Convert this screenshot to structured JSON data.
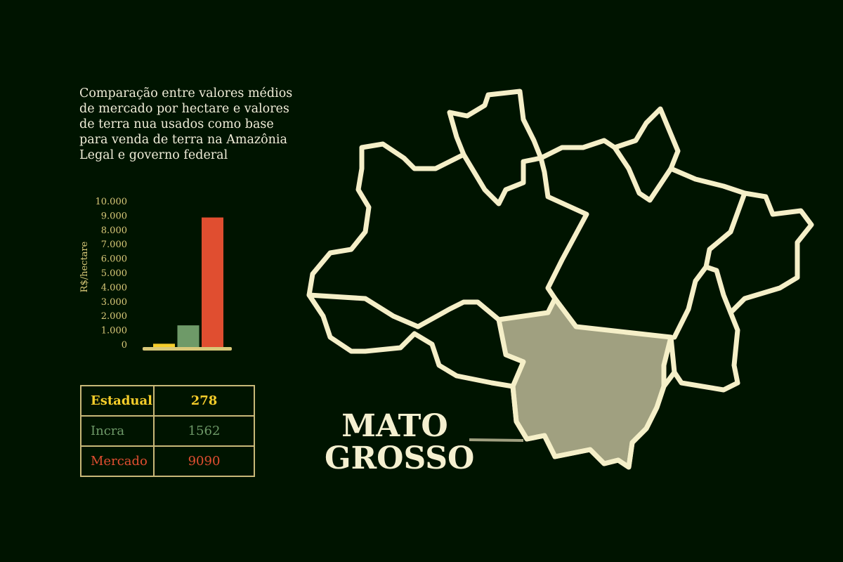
{
  "title": "Comparação entre valores médios de mercado por hectare e valores de terra nua usados como base para venda de terra na Amazônia Legal e governo federal",
  "chart_data": {
    "type": "bar",
    "categories": [
      "Estadual",
      "Incra",
      "Mercado"
    ],
    "values": [
      278,
      1562,
      9090
    ],
    "colors": [
      "#f5cd2a",
      "#6e9a68",
      "#e04e30"
    ],
    "ylabel": "R$/hectare",
    "ylim": [
      0,
      10000
    ],
    "yticks": [
      "0",
      "1.000",
      "2.000",
      "3.000",
      "4.000",
      "5.000",
      "6.000",
      "7.000",
      "8.000",
      "9.000",
      "10.000"
    ],
    "grid": false
  },
  "table": [
    {
      "label": "Estadual",
      "value": "278",
      "color": "#f5cd2a"
    },
    {
      "label": "Incra",
      "value": "1562",
      "color": "#6e9a68"
    },
    {
      "label": "Mercado",
      "value": "9090",
      "color": "#e04e30"
    }
  ],
  "map": {
    "highlight_label_line1": "MATO",
    "highlight_label_line2": "GROSSO",
    "outline_color": "#f5efc8",
    "highlight_fill": "#a0a080"
  }
}
